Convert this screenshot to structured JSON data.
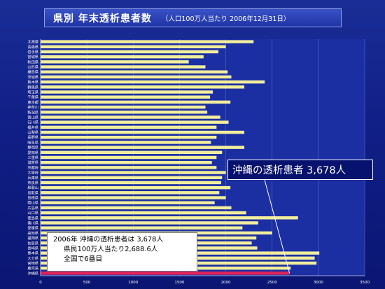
{
  "title": {
    "main": "県別 年末透析患者数",
    "sub": "（人口100万人当たり 2006年12月31日）"
  },
  "callouts": {
    "highlight": "沖縄の透析患者 3,678人",
    "info_line1": "2006年 沖縄の透析患者は 3,678人",
    "info_line2": "県民100万人当たり2,688.6人",
    "info_line3": "全国で6番目"
  },
  "colors": {
    "bar": "#f2ee9c",
    "highlight_bar": "#e0245a",
    "plot_bg": "#1c2fa2",
    "grid": "#5568c8",
    "text": "#ffffff"
  },
  "chart_data": {
    "type": "bar",
    "orientation": "horizontal",
    "categories": [
      "北海道",
      "青森県",
      "岩手県",
      "宮城県",
      "秋田県",
      "山形県",
      "福島県",
      "茨城県",
      "栃木県",
      "群馬県",
      "埼玉県",
      "千葉県",
      "東京都",
      "神奈川",
      "新潟県",
      "富山県",
      "石川県",
      "福井県",
      "山梨県",
      "長野県",
      "岐阜県",
      "静岡県",
      "愛知県",
      "三重県",
      "滋賀県",
      "京都府",
      "大阪府",
      "兵庫県",
      "奈良県",
      "和歌山",
      "鳥取県",
      "島根県",
      "岡山県",
      "広島県",
      "山口県",
      "徳島県",
      "香川県",
      "愛媛県",
      "高知県",
      "福岡県",
      "佐賀県",
      "長崎県",
      "熊本県",
      "大分県",
      "宮崎県",
      "鹿児島",
      "沖縄県"
    ],
    "values": [
      2300,
      2000,
      1920,
      1760,
      1600,
      1780,
      2020,
      2060,
      2420,
      2200,
      1860,
      1830,
      2050,
      1780,
      1800,
      1940,
      2030,
      1900,
      2200,
      1900,
      1840,
      2200,
      1960,
      1900,
      1850,
      1900,
      2000,
      1960,
      1950,
      2050,
      1930,
      2000,
      1880,
      2060,
      2220,
      2780,
      2350,
      2180,
      2500,
      2330,
      2280,
      2340,
      3010,
      2960,
      2980,
      2700,
      2688.6
    ],
    "highlight_category": "沖縄県",
    "xlim": [
      0,
      3500
    ],
    "xticks": [
      0,
      500,
      1000,
      1500,
      2000,
      2500,
      3000,
      3500
    ],
    "grid": true
  }
}
